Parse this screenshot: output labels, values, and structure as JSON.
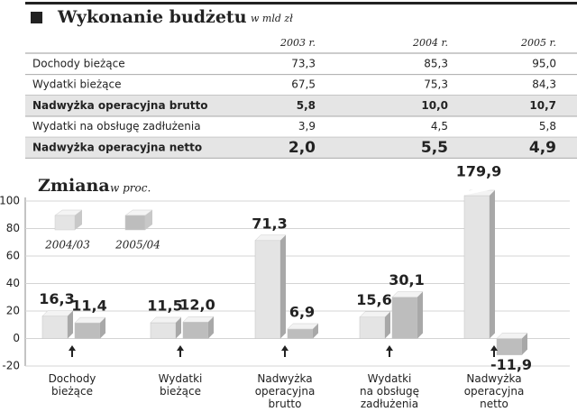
{
  "header": {
    "title": "Wykonanie budżetu",
    "subtitle": "w mld zł"
  },
  "table": {
    "columns": [
      "2003 r.",
      "2004 r.",
      "2005 r."
    ],
    "rows": [
      {
        "label": "Dochody bieżące",
        "cells": [
          "73,3",
          "85,3",
          "95,0"
        ],
        "highlight": false
      },
      {
        "label": "Wydatki bieżące",
        "cells": [
          "67,5",
          "75,3",
          "84,3"
        ],
        "highlight": false
      },
      {
        "label": "Nadwyżka operacyjna brutto",
        "cells": [
          "5,8",
          "10,0",
          "10,7"
        ],
        "highlight": true
      },
      {
        "label": "Wydatki na obsługę zadłużenia",
        "cells": [
          "3,9",
          "4,5",
          "5,8"
        ],
        "highlight": false
      },
      {
        "label": "Nadwyżka operacyjna netto",
        "cells": [
          "2,0",
          "5,5",
          "4,9"
        ],
        "highlight": true
      }
    ]
  },
  "chart_data": {
    "type": "bar",
    "title": "Zmiana",
    "subtitle": "w proc.",
    "categories": [
      "Dochody\nbieżące",
      "Wydatki\nbieżące",
      "Nadwyżka\noperacyjna\nbrutto",
      "Wydatki\nna obsługę\nzadłużenia",
      "Nadwyżka\noperacyjna\nnetto"
    ],
    "series": [
      {
        "name": "2004/03",
        "color": "#e4e4e4",
        "values": [
          16.3,
          11.5,
          71.3,
          15.6,
          179.9
        ],
        "value_labels": [
          "16,3",
          "11,5",
          "71,3",
          "15,6",
          "179,9"
        ]
      },
      {
        "name": "2005/04",
        "color": "#bdbdbd",
        "values": [
          11.4,
          12.0,
          6.9,
          30.1,
          -11.9
        ],
        "value_labels": [
          "11,4",
          "12,0",
          "6,9",
          "30,1",
          "-11,9"
        ]
      }
    ],
    "ylim": [
      -20,
      100
    ],
    "yticks": [
      -20,
      0,
      20,
      40,
      60,
      80,
      100
    ],
    "grid": true,
    "legend": "upper left"
  }
}
